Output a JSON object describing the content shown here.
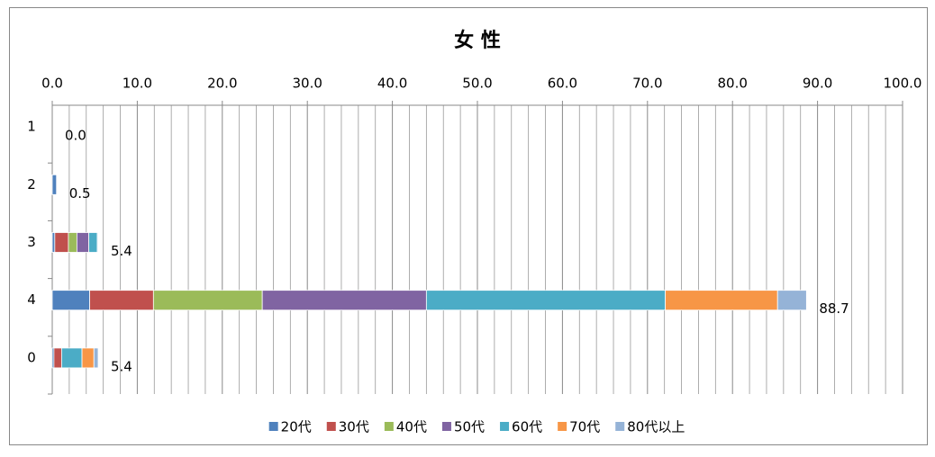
{
  "chart_data": {
    "type": "stacked-barh",
    "title": "女 性",
    "categories": [
      "1",
      "2",
      "3",
      "4",
      "0"
    ],
    "series": [
      {
        "name": "20代",
        "color": "#4f81bd",
        "values": [
          0,
          0.5,
          0.3,
          4.4,
          0.2
        ]
      },
      {
        "name": "30代",
        "color": "#c0504d",
        "values": [
          0,
          0,
          1.6,
          7.5,
          0.9
        ]
      },
      {
        "name": "40代",
        "color": "#9bbb59",
        "values": [
          0,
          0,
          1.0,
          12.8,
          0
        ]
      },
      {
        "name": "50代",
        "color": "#8064a2",
        "values": [
          0,
          0,
          1.4,
          19.3,
          0
        ]
      },
      {
        "name": "60代",
        "color": "#4bacc6",
        "values": [
          0,
          0,
          1.0,
          28.1,
          2.4
        ]
      },
      {
        "name": "70代",
        "color": "#f79646",
        "values": [
          0,
          0,
          0,
          13.2,
          1.4
        ]
      },
      {
        "name": "80代以上",
        "color": "#95b3d7",
        "values": [
          0,
          0,
          0.1,
          3.4,
          0.5
        ]
      }
    ],
    "totals": [
      0,
      0.5,
      5.4,
      88.7,
      5.4
    ],
    "total_labels": [
      "0.0",
      "0.5",
      "5.4",
      "88.7",
      "5.4"
    ],
    "xlim": [
      0,
      100
    ],
    "xticks": [
      {
        "value": 0,
        "label": "0.0"
      },
      {
        "value": 10,
        "label": "10.0"
      },
      {
        "value": 20,
        "label": "20.0"
      },
      {
        "value": 30,
        "label": "30.0"
      },
      {
        "value": 40,
        "label": "40.0"
      },
      {
        "value": 50,
        "label": "50.0"
      },
      {
        "value": 60,
        "label": "60.0"
      },
      {
        "value": 70,
        "label": "70.0"
      },
      {
        "value": 80,
        "label": "80.0"
      },
      {
        "value": 90,
        "label": "90.0"
      },
      {
        "value": 100,
        "label": "100.0"
      }
    ],
    "minor_xticks": [
      2,
      4,
      6,
      8,
      12,
      14,
      16,
      18,
      22,
      24,
      26,
      28,
      32,
      34,
      36,
      38,
      42,
      44,
      46,
      48,
      52,
      54,
      56,
      58,
      62,
      64,
      66,
      68,
      72,
      74,
      76,
      78,
      82,
      84,
      86,
      88,
      92,
      94,
      96,
      98
    ],
    "grid": true,
    "legend": "bottom"
  }
}
